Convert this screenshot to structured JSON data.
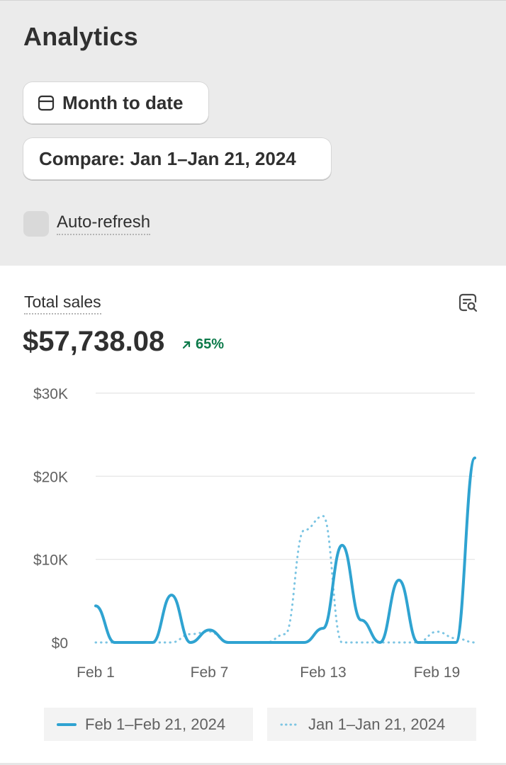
{
  "page": {
    "title": "Analytics"
  },
  "controls": {
    "date_range_label": "Month to date",
    "compare_label": "Compare: Jan 1–Jan 21, 2024",
    "auto_refresh_label": "Auto-refresh",
    "auto_refresh_checked": false
  },
  "metric": {
    "title": "Total sales",
    "value": "$57,738.08",
    "change": "65%",
    "change_direction": "up",
    "change_color": "#0c7a4a"
  },
  "icons": {
    "date": "calendar-icon",
    "explore": "chart-search-icon",
    "trend": "arrow-up-right-icon"
  },
  "chart_data": {
    "type": "line",
    "x_tick_labels": [
      "Feb 1",
      "Feb 7",
      "Feb 13",
      "Feb 19"
    ],
    "y_tick_labels": [
      "$0",
      "$10K",
      "$20K",
      "$30K"
    ],
    "ylim": [
      0,
      30000
    ],
    "grid": true,
    "legend_position": "bottom",
    "series": [
      {
        "name": "Feb 1–Feb 21, 2024",
        "style": "solid",
        "color": "#2fa3d1",
        "x": [
          "Feb 1",
          "Feb 2",
          "Feb 3",
          "Feb 4",
          "Feb 5",
          "Feb 6",
          "Feb 7",
          "Feb 8",
          "Feb 9",
          "Feb 10",
          "Feb 11",
          "Feb 12",
          "Feb 13",
          "Feb 14",
          "Feb 15",
          "Feb 16",
          "Feb 17",
          "Feb 18",
          "Feb 19",
          "Feb 20",
          "Feb 21"
        ],
        "values": [
          4400,
          0,
          0,
          0,
          5700,
          0,
          1500,
          0,
          0,
          0,
          0,
          0,
          1700,
          11700,
          2700,
          0,
          7500,
          0,
          0,
          0,
          22200
        ]
      },
      {
        "name": "Jan 1–Jan 21, 2024",
        "style": "dotted",
        "color": "#7cc5e3",
        "x": [
          "Jan 1",
          "Jan 2",
          "Jan 3",
          "Jan 4",
          "Jan 5",
          "Jan 6",
          "Jan 7",
          "Jan 8",
          "Jan 9",
          "Jan 10",
          "Jan 11",
          "Jan 12",
          "Jan 13",
          "Jan 14",
          "Jan 15",
          "Jan 16",
          "Jan 17",
          "Jan 18",
          "Jan 19",
          "Jan 20",
          "Jan 21"
        ],
        "values": [
          0,
          0,
          0,
          0,
          0,
          1000,
          1300,
          0,
          0,
          0,
          1000,
          13500,
          15200,
          0,
          0,
          0,
          0,
          0,
          1300,
          500,
          0
        ]
      }
    ]
  }
}
